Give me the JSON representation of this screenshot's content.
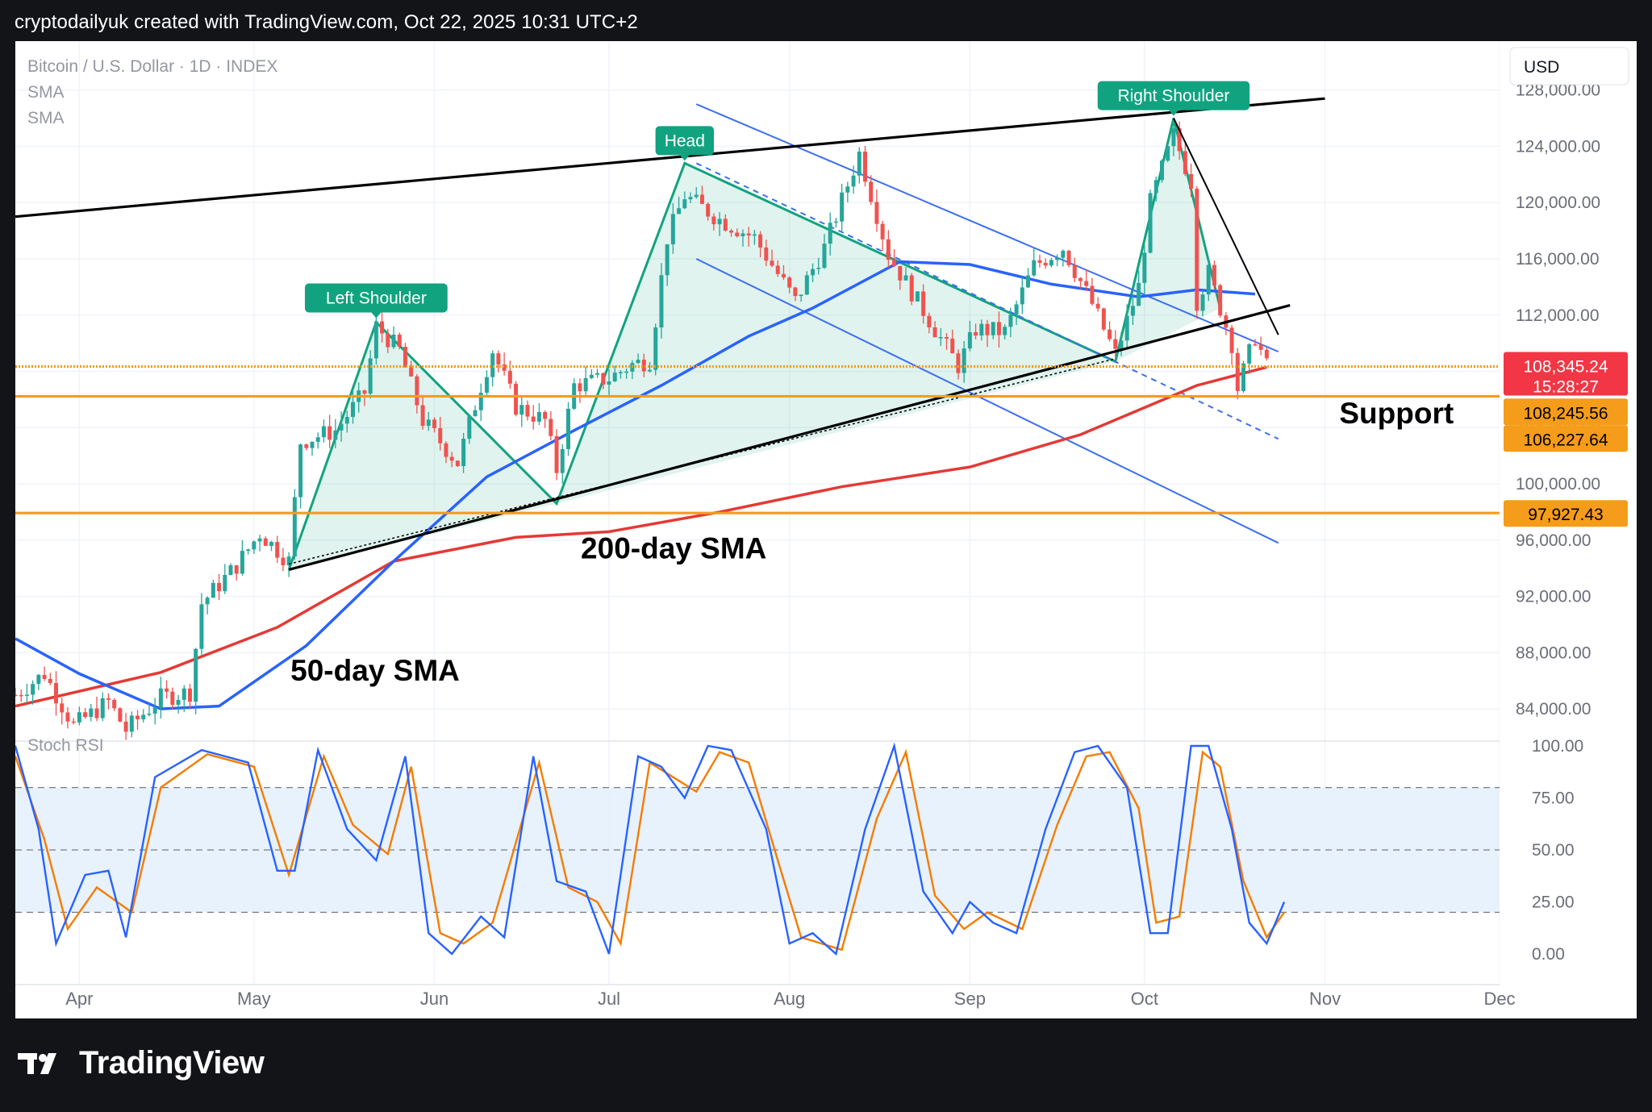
{
  "header": {
    "attribution": "cryptodailyuk created with TradingView.com, Oct 22, 2025 10:31 UTC+2"
  },
  "footer": {
    "brand": "TradingView",
    "logo_icon": "tradingview-logo-icon"
  },
  "legend": {
    "symbol": "Bitcoin / U.S. Dollar · 1D · INDEX",
    "indicator_1": "SMA",
    "indicator_2": "SMA",
    "rsi_label": "Stoch RSI"
  },
  "currency_button": "USD",
  "annotations": {
    "left_shoulder": "Left Shoulder",
    "head": "Head",
    "right_shoulder": "Right Shoulder",
    "support": "Support",
    "sma200": "200-day SMA",
    "sma50": "50-day SMA"
  },
  "price_tags": {
    "last": "108,345.24",
    "countdown": "15:28:27",
    "level_1": "108,245.56",
    "level_2": "106,227.64",
    "level_3": "97,927.43"
  },
  "colors": {
    "up": "#26a69a",
    "down": "#ef5350",
    "sma50": "#2962ff",
    "sma200": "#e53935",
    "pattern": "#11a37f",
    "support": "#f59c1a",
    "channel": "#3d6ff0",
    "rsi_k": "#2962ff",
    "rsi_d": "#f57c00"
  },
  "chart_data": {
    "type": "candlestick",
    "title": "Bitcoin / U.S. Dollar · 1D · INDEX",
    "x_ticks": [
      "Apr",
      "May",
      "Jun",
      "Jul",
      "Aug",
      "Sep",
      "Oct",
      "Nov",
      "Dec"
    ],
    "x_range": [
      "2025-03-21",
      "2025-12-01"
    ],
    "y_ticks": [
      "128,000.00",
      "124,000.00",
      "120,000.00",
      "116,000.00",
      "112,000.00",
      "108,000.00",
      "104,000.00",
      "100,000.00",
      "96,000.00",
      "92,000.00",
      "88,000.00",
      "84,000.00"
    ],
    "ylim": [
      82000,
      128500
    ],
    "price_path": [
      [
        "2025-03-21",
        85000
      ],
      [
        "2025-03-26",
        86500
      ],
      [
        "2025-03-31",
        82800
      ],
      [
        "2025-04-06",
        84500
      ],
      [
        "2025-04-09",
        82500
      ],
      [
        "2025-04-15",
        84800
      ],
      [
        "2025-04-20",
        85200
      ],
      [
        "2025-04-22",
        91500
      ],
      [
        "2025-04-28",
        94200
      ],
      [
        "2025-05-02",
        96500
      ],
      [
        "2025-05-07",
        94500
      ],
      [
        "2025-05-09",
        103000
      ],
      [
        "2025-05-15",
        103800
      ],
      [
        "2025-05-20",
        106500
      ],
      [
        "2025-05-22",
        111200
      ],
      [
        "2025-05-26",
        109500
      ],
      [
        "2025-05-30",
        104500
      ],
      [
        "2025-06-05",
        101500
      ],
      [
        "2025-06-09",
        107000
      ],
      [
        "2025-06-11",
        109500
      ],
      [
        "2025-06-15",
        105500
      ],
      [
        "2025-06-20",
        104500
      ],
      [
        "2025-06-22",
        101000
      ],
      [
        "2025-06-25",
        107000
      ],
      [
        "2025-07-01",
        107500
      ],
      [
        "2025-07-05",
        108500
      ],
      [
        "2025-07-08",
        108800
      ],
      [
        "2025-07-11",
        117500
      ],
      [
        "2025-07-14",
        120500
      ],
      [
        "2025-07-20",
        118800
      ],
      [
        "2025-07-26",
        117500
      ],
      [
        "2025-08-02",
        113000
      ],
      [
        "2025-08-07",
        116800
      ],
      [
        "2025-08-13",
        123500
      ],
      [
        "2025-08-18",
        116300
      ],
      [
        "2025-08-26",
        111000
      ],
      [
        "2025-08-30",
        108400
      ],
      [
        "2025-09-02",
        111000
      ],
      [
        "2025-09-07",
        110800
      ],
      [
        "2025-09-12",
        115500
      ],
      [
        "2025-09-17",
        116800
      ],
      [
        "2025-09-22",
        112800
      ],
      [
        "2025-09-26",
        109200
      ],
      [
        "2025-09-30",
        114000
      ],
      [
        "2025-10-02",
        120000
      ],
      [
        "2025-10-06",
        124800
      ],
      [
        "2025-10-09",
        121500
      ],
      [
        "2025-10-10",
        113000
      ],
      [
        "2025-10-12",
        115000
      ],
      [
        "2025-10-14",
        112500
      ],
      [
        "2025-10-16",
        110000
      ],
      [
        "2025-10-17",
        106800
      ],
      [
        "2025-10-20",
        110500
      ],
      [
        "2025-10-22",
        108345
      ]
    ],
    "sma50": [
      [
        "2025-03-21",
        89000
      ],
      [
        "2025-04-01",
        86500
      ],
      [
        "2025-04-15",
        84000
      ],
      [
        "2025-04-25",
        84200
      ],
      [
        "2025-05-10",
        88500
      ],
      [
        "2025-05-25",
        94500
      ],
      [
        "2025-06-10",
        100500
      ],
      [
        "2025-06-25",
        103800
      ],
      [
        "2025-07-10",
        107000
      ],
      [
        "2025-07-25",
        110500
      ],
      [
        "2025-08-05",
        112500
      ],
      [
        "2025-08-20",
        115800
      ],
      [
        "2025-09-01",
        115600
      ],
      [
        "2025-09-15",
        114200
      ],
      [
        "2025-09-30",
        113300
      ],
      [
        "2025-10-10",
        113800
      ],
      [
        "2025-10-20",
        113500
      ]
    ],
    "sma200": [
      [
        "2025-03-21",
        84200
      ],
      [
        "2025-04-15",
        86600
      ],
      [
        "2025-05-05",
        89800
      ],
      [
        "2025-05-25",
        94500
      ],
      [
        "2025-06-15",
        96200
      ],
      [
        "2025-07-01",
        96600
      ],
      [
        "2025-07-20",
        98000
      ],
      [
        "2025-08-10",
        99800
      ],
      [
        "2025-09-01",
        101200
      ],
      [
        "2025-09-20",
        103500
      ],
      [
        "2025-10-10",
        107000
      ],
      [
        "2025-10-22",
        108300
      ]
    ],
    "pattern": {
      "left_shoulder_peak": [
        "2025-05-22",
        111500
      ],
      "head_peak": [
        "2025-07-14",
        122800
      ],
      "right_shoulder_peak": [
        "2025-10-06",
        126000
      ],
      "lows": [
        [
          "2025-05-07",
          93900
        ],
        [
          "2025-06-22",
          98600
        ],
        [
          "2025-09-26",
          108700
        ]
      ]
    },
    "support_levels": [
      108345.24,
      106227.64,
      97927.43
    ],
    "stoch_rsi": {
      "ylim": [
        0,
        100
      ],
      "y_ticks": [
        "100.00",
        "75.00",
        "50.00",
        "25.00",
        "0.00"
      ],
      "bands": [
        80,
        20
      ],
      "k": [
        [
          "2025-03-21",
          100
        ],
        [
          "2025-03-25",
          60
        ],
        [
          "2025-03-28",
          5
        ],
        [
          "2025-04-02",
          38
        ],
        [
          "2025-04-06",
          40
        ],
        [
          "2025-04-09",
          8
        ],
        [
          "2025-04-14",
          85
        ],
        [
          "2025-04-22",
          98
        ],
        [
          "2025-04-30",
          92
        ],
        [
          "2025-05-05",
          40
        ],
        [
          "2025-05-08",
          40
        ],
        [
          "2025-05-12",
          98
        ],
        [
          "2025-05-17",
          60
        ],
        [
          "2025-05-22",
          45
        ],
        [
          "2025-05-27",
          95
        ],
        [
          "2025-05-31",
          10
        ],
        [
          "2025-06-04",
          0
        ],
        [
          "2025-06-09",
          18
        ],
        [
          "2025-06-13",
          8
        ],
        [
          "2025-06-18",
          95
        ],
        [
          "2025-06-22",
          35
        ],
        [
          "2025-06-27",
          30
        ],
        [
          "2025-07-01",
          0
        ],
        [
          "2025-07-06",
          95
        ],
        [
          "2025-07-10",
          90
        ],
        [
          "2025-07-14",
          75
        ],
        [
          "2025-07-18",
          100
        ],
        [
          "2025-07-22",
          98
        ],
        [
          "2025-07-28",
          60
        ],
        [
          "2025-08-01",
          5
        ],
        [
          "2025-08-05",
          10
        ],
        [
          "2025-08-09",
          0
        ],
        [
          "2025-08-14",
          60
        ],
        [
          "2025-08-19",
          100
        ],
        [
          "2025-08-24",
          30
        ],
        [
          "2025-08-29",
          10
        ],
        [
          "2025-09-01",
          25
        ],
        [
          "2025-09-05",
          15
        ],
        [
          "2025-09-09",
          10
        ],
        [
          "2025-09-14",
          60
        ],
        [
          "2025-09-19",
          97
        ],
        [
          "2025-09-23",
          100
        ],
        [
          "2025-09-28",
          80
        ],
        [
          "2025-10-02",
          10
        ],
        [
          "2025-10-05",
          10
        ],
        [
          "2025-10-09",
          100
        ],
        [
          "2025-10-12",
          100
        ],
        [
          "2025-10-16",
          60
        ],
        [
          "2025-10-19",
          15
        ],
        [
          "2025-10-22",
          5
        ],
        [
          "2025-10-25",
          25
        ]
      ],
      "d": [
        [
          "2025-03-21",
          95
        ],
        [
          "2025-03-26",
          55
        ],
        [
          "2025-03-30",
          12
        ],
        [
          "2025-04-04",
          32
        ],
        [
          "2025-04-10",
          20
        ],
        [
          "2025-04-15",
          80
        ],
        [
          "2025-04-23",
          96
        ],
        [
          "2025-05-01",
          90
        ],
        [
          "2025-05-07",
          38
        ],
        [
          "2025-05-13",
          95
        ],
        [
          "2025-05-18",
          62
        ],
        [
          "2025-05-24",
          48
        ],
        [
          "2025-05-28",
          90
        ],
        [
          "2025-06-02",
          10
        ],
        [
          "2025-06-06",
          5
        ],
        [
          "2025-06-11",
          15
        ],
        [
          "2025-06-19",
          92
        ],
        [
          "2025-06-24",
          32
        ],
        [
          "2025-06-29",
          25
        ],
        [
          "2025-07-03",
          5
        ],
        [
          "2025-07-08",
          92
        ],
        [
          "2025-07-12",
          85
        ],
        [
          "2025-07-16",
          78
        ],
        [
          "2025-07-20",
          97
        ],
        [
          "2025-07-25",
          92
        ],
        [
          "2025-07-30",
          45
        ],
        [
          "2025-08-03",
          8
        ],
        [
          "2025-08-10",
          2
        ],
        [
          "2025-08-16",
          65
        ],
        [
          "2025-08-21",
          97
        ],
        [
          "2025-08-26",
          28
        ],
        [
          "2025-08-31",
          12
        ],
        [
          "2025-09-04",
          20
        ],
        [
          "2025-09-10",
          12
        ],
        [
          "2025-09-16",
          62
        ],
        [
          "2025-09-21",
          95
        ],
        [
          "2025-09-25",
          97
        ],
        [
          "2025-09-30",
          70
        ],
        [
          "2025-10-03",
          15
        ],
        [
          "2025-10-07",
          18
        ],
        [
          "2025-10-11",
          97
        ],
        [
          "2025-10-14",
          90
        ],
        [
          "2025-10-18",
          35
        ],
        [
          "2025-10-22",
          8
        ],
        [
          "2025-10-25",
          20
        ]
      ]
    }
  }
}
